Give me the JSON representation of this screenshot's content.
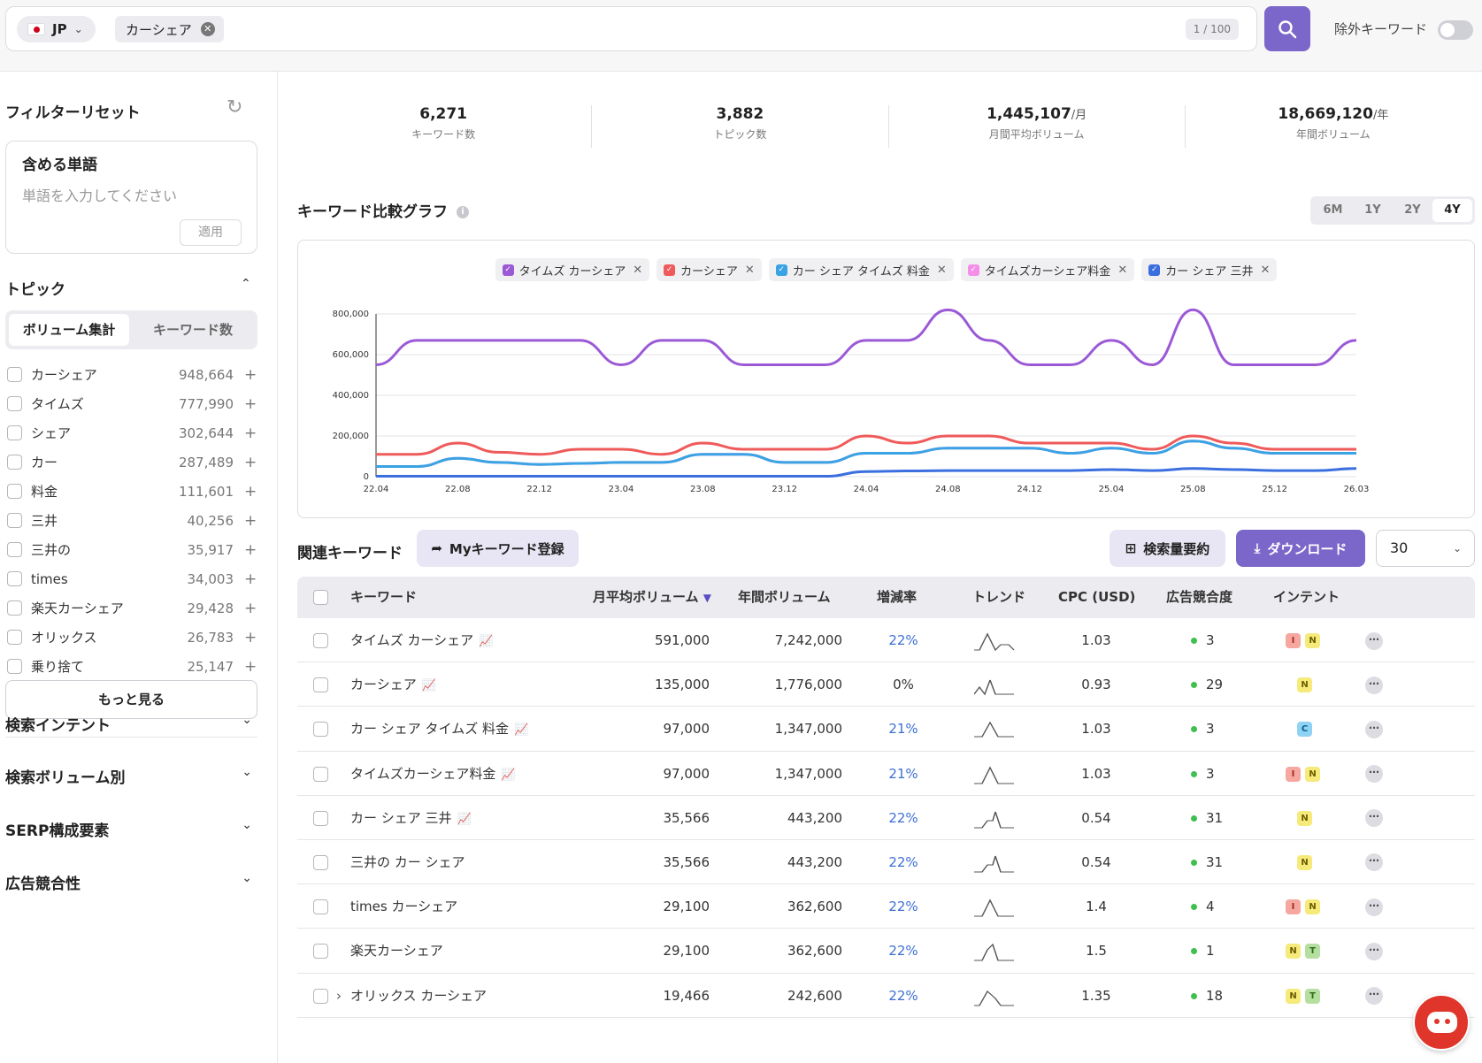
{
  "topbar": {
    "country": "JP",
    "chip": "カーシェア",
    "count": "1 / 100",
    "exclude_label": "除外キーワード"
  },
  "sidebar": {
    "reset": "フィルターリセット",
    "include_title": "含める単語",
    "include_placeholder": "単語を入力してください",
    "apply": "適用",
    "topic_title": "トピック",
    "seg_volume": "ボリューム集計",
    "seg_keywords": "キーワード数",
    "topics": [
      {
        "label": "カーシェア",
        "value": "948,664"
      },
      {
        "label": "タイムズ",
        "value": "777,990"
      },
      {
        "label": "シェア",
        "value": "302,644"
      },
      {
        "label": "カー",
        "value": "287,489"
      },
      {
        "label": "料金",
        "value": "111,601"
      },
      {
        "label": "三井",
        "value": "40,256"
      },
      {
        "label": "三井の",
        "value": "35,917"
      },
      {
        "label": "times",
        "value": "34,003"
      },
      {
        "label": "楽天カーシェア",
        "value": "29,428"
      },
      {
        "label": "オリックス",
        "value": "26,783"
      },
      {
        "label": "乗り捨て",
        "value": "25,147"
      }
    ],
    "more": "もっと見る",
    "accordions": [
      "検索インテント",
      "検索ボリューム別",
      "SERP構成要素",
      "広告競合性"
    ]
  },
  "stats": [
    {
      "value": "6,271",
      "unit": "",
      "label": "キーワード数"
    },
    {
      "value": "3,882",
      "unit": "",
      "label": "トピック数"
    },
    {
      "value": "1,445,107",
      "unit": "/月",
      "label": "月間平均ボリューム"
    },
    {
      "value": "18,669,120",
      "unit": "/年",
      "label": "年間ボリューム"
    }
  ],
  "graph": {
    "title": "キーワード比較グラフ",
    "ranges": [
      "6M",
      "1Y",
      "2Y",
      "4Y"
    ],
    "active_range": "4Y"
  },
  "colors": {
    "accent": "#7b67c9",
    "purple": "#9b59d6",
    "red": "#ef5a5a",
    "cyan": "#3aa3e3",
    "pink": "#f48ee8",
    "blue": "#3b6fe0"
  },
  "chart_data": {
    "type": "line",
    "x": [
      "22.04",
      "22.06",
      "22.08",
      "22.10",
      "22.12",
      "23.02",
      "23.04",
      "23.06",
      "23.08",
      "23.10",
      "23.12",
      "24.02",
      "24.04",
      "24.06",
      "24.08",
      "24.10",
      "24.12",
      "25.02",
      "25.04",
      "25.06",
      "25.08",
      "25.10",
      "25.12",
      "26.02",
      "26.03"
    ],
    "x_ticks": [
      "22.04",
      "22.08",
      "22.12",
      "23.04",
      "23.08",
      "23.12",
      "24.04",
      "24.08",
      "24.12",
      "25.04",
      "25.08",
      "25.12",
      "26.03"
    ],
    "y_ticks": [
      "0",
      "200,000",
      "400,000",
      "600,000",
      "800,000"
    ],
    "ylim": [
      0,
      800000
    ],
    "series": [
      {
        "name": "タイムズ カーシェア",
        "color": "#9b59d6",
        "values": [
          550000,
          670000,
          670000,
          670000,
          670000,
          670000,
          550000,
          670000,
          670000,
          550000,
          550000,
          550000,
          670000,
          670000,
          820000,
          670000,
          550000,
          550000,
          670000,
          550000,
          820000,
          550000,
          550000,
          550000,
          670000
        ]
      },
      {
        "name": "カーシェア",
        "color": "#ef5a5a",
        "values": [
          110000,
          110000,
          165000,
          120000,
          110000,
          135000,
          135000,
          110000,
          165000,
          135000,
          135000,
          135000,
          200000,
          165000,
          200000,
          200000,
          165000,
          165000,
          165000,
          135000,
          200000,
          165000,
          135000,
          135000,
          135000
        ]
      },
      {
        "name": "カー シェア タイムズ 料金",
        "color": "#3aa3e3",
        "values": [
          50000,
          50000,
          90000,
          70000,
          60000,
          65000,
          70000,
          70000,
          110000,
          110000,
          70000,
          70000,
          115000,
          115000,
          140000,
          140000,
          140000,
          115000,
          140000,
          115000,
          175000,
          140000,
          115000,
          115000,
          115000
        ]
      },
      {
        "name": "タイムズカーシェア料金",
        "color": "#f48ee8",
        "values": [
          50000,
          50000,
          90000,
          70000,
          60000,
          65000,
          70000,
          70000,
          110000,
          110000,
          70000,
          70000,
          115000,
          115000,
          140000,
          140000,
          140000,
          115000,
          140000,
          115000,
          175000,
          140000,
          115000,
          115000,
          115000
        ]
      },
      {
        "name": "カー シェア 三井",
        "color": "#3b6fe0",
        "values": [
          2000,
          2000,
          2000,
          2000,
          2000,
          2000,
          2000,
          2000,
          2000,
          2000,
          2000,
          2000,
          25000,
          28000,
          30000,
          30000,
          30000,
          30000,
          35000,
          30000,
          40000,
          35000,
          30000,
          30000,
          40000
        ]
      }
    ]
  },
  "related": {
    "title": "関連キーワード",
    "my_keyword": "Myキーワード登録",
    "summary": "検索量要約",
    "download": "ダウンロード",
    "page_size": "30",
    "headers": {
      "keyword": "キーワード",
      "monthly": "月平均ボリューム",
      "yearly": "年間ボリューム",
      "growth": "増減率",
      "trend": "トレンド",
      "cpc": "CPC (USD)",
      "competition": "広告競合度",
      "intent": "インテント"
    },
    "rows": [
      {
        "keyword": "タイムズ カーシェア",
        "monthly": "591,000",
        "yearly": "7,242,000",
        "growth": "22%",
        "cpc": "1.03",
        "competition": "3",
        "intents": [
          "I",
          "N"
        ],
        "icon": true
      },
      {
        "keyword": "カーシェア",
        "monthly": "135,000",
        "yearly": "1,776,000",
        "growth": "0%",
        "cpc": "0.93",
        "competition": "29",
        "intents": [
          "N"
        ],
        "icon": true
      },
      {
        "keyword": "カー シェア タイムズ 料金",
        "monthly": "97,000",
        "yearly": "1,347,000",
        "growth": "21%",
        "cpc": "1.03",
        "competition": "3",
        "intents": [
          "C"
        ],
        "icon": true
      },
      {
        "keyword": "タイムズカーシェア料金",
        "monthly": "97,000",
        "yearly": "1,347,000",
        "growth": "21%",
        "cpc": "1.03",
        "competition": "3",
        "intents": [
          "I",
          "N"
        ],
        "icon": true
      },
      {
        "keyword": "カー シェア 三井",
        "monthly": "35,566",
        "yearly": "443,200",
        "growth": "22%",
        "cpc": "0.54",
        "competition": "31",
        "intents": [
          "N"
        ],
        "icon": true
      },
      {
        "keyword": "三井の カー シェア",
        "monthly": "35,566",
        "yearly": "443,200",
        "growth": "22%",
        "cpc": "0.54",
        "competition": "31",
        "intents": [
          "N"
        ],
        "icon": false
      },
      {
        "keyword": "times カーシェア",
        "monthly": "29,100",
        "yearly": "362,600",
        "growth": "22%",
        "cpc": "1.4",
        "competition": "4",
        "intents": [
          "I",
          "N"
        ],
        "icon": false
      },
      {
        "keyword": "楽天カーシェア",
        "monthly": "29,100",
        "yearly": "362,600",
        "growth": "22%",
        "cpc": "1.5",
        "competition": "1",
        "intents": [
          "N",
          "T"
        ],
        "icon": false
      },
      {
        "keyword": "オリックス カーシェア",
        "monthly": "19,466",
        "yearly": "242,600",
        "growth": "22%",
        "cpc": "1.35",
        "competition": "18",
        "intents": [
          "N",
          "T"
        ],
        "icon": false
      }
    ]
  }
}
